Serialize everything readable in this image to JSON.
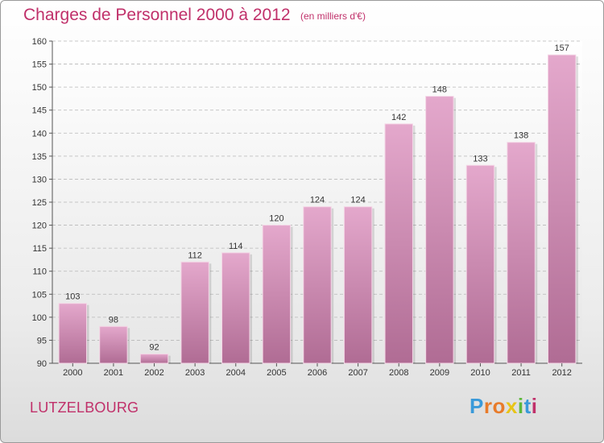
{
  "header": {
    "title": "Charges de Personnel 2000 à 2012",
    "subtitle": "(en milliers d'€)"
  },
  "footer": {
    "place": "LUTZELBOURG",
    "logo_letters": [
      "P",
      "r",
      "o",
      "x",
      "i",
      "t",
      "i"
    ]
  },
  "colors": {
    "title": "#c0306a",
    "bar_light": "#e4a8cc",
    "bar_dark": "#b06c94",
    "logo": [
      "#3a9ad9",
      "#e87b2a",
      "#e87b2a",
      "#e8c417",
      "#5cb83a",
      "#3a9ad9",
      "#c0306a"
    ]
  },
  "chart_data": {
    "type": "bar",
    "title": "Charges de Personnel 2000 à 2012",
    "subtitle": "(en milliers d'€)",
    "categories": [
      "2000",
      "2001",
      "2002",
      "2003",
      "2004",
      "2005",
      "2006",
      "2007",
      "2008",
      "2009",
      "2010",
      "2011",
      "2012"
    ],
    "values": [
      103,
      98,
      92,
      112,
      114,
      120,
      124,
      124,
      142,
      148,
      133,
      138,
      157
    ],
    "ylim": [
      90,
      160
    ],
    "yticks": [
      90,
      95,
      100,
      105,
      110,
      115,
      120,
      125,
      130,
      135,
      140,
      145,
      150,
      155,
      160
    ],
    "grid": true,
    "data_labels": true
  }
}
